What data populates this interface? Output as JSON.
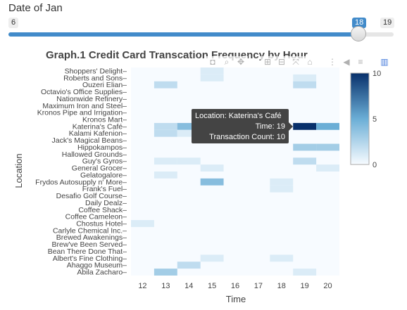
{
  "slider": {
    "title": "Date of Jan",
    "min_label": "6",
    "max_label": "19",
    "current_label": "18",
    "min": 6,
    "max": 19,
    "value": 18
  },
  "chart_title": "Graph.1 Credit Card Transcation Frequency by Hour",
  "modebar_icons": [
    "camera-icon",
    "zoom-icon",
    "pan-icon",
    "zoom-in-icon",
    "zoom-out-icon",
    "autoscale-icon",
    "home-icon",
    "spike-lines-icon",
    "hover-closest-icon",
    "hover-compare-icon",
    "plotly-logo-icon"
  ],
  "tooltip": {
    "line1": "Location: Katerina's Café",
    "line2": "Time: 19",
    "line3": "Transaction Count: 10"
  },
  "chart_data": {
    "type": "heatmap",
    "title": "Graph.1 Credit Card Transcation Frequency by Hour",
    "xlabel": "Time",
    "ylabel": "Location",
    "x": [
      12,
      13,
      14,
      15,
      16,
      17,
      18,
      19,
      20
    ],
    "locations": [
      "Shoppers' Delight",
      "Roberts and Sons",
      "Ouzeri Elian",
      "Octavio's Office Supplies",
      "Nationwide Refinery",
      "Maximum Iron and Steel",
      "Kronos Pipe and Irrigation",
      "Kronos Mart",
      "Katerina's Café",
      "Kalami Kafenion",
      "Jack's Magical Beans",
      "Hippokampos",
      "Hallowed Grounds",
      "Guy's Gyros",
      "General Grocer",
      "Gelatogalore",
      "Frydos Autosupply n' More",
      "Frank's Fuel",
      "Desafio Golf Course",
      "Daily Dealz",
      "Coffee Shack",
      "Coffee Cameleon",
      "Chostus Hotel",
      "Carlyle Chemical Inc.",
      "Brewed Awakenings",
      "Brew've Been Served",
      "Bean There Done That",
      "Albert's Fine Clothing",
      "Ahaggo Museum",
      "Abila Zacharo"
    ],
    "values": [
      [
        0,
        0,
        0,
        1,
        0,
        0,
        0,
        0,
        0
      ],
      [
        0,
        0,
        0,
        1,
        0,
        0,
        0,
        1,
        0
      ],
      [
        0,
        2,
        0,
        0,
        0,
        0,
        0,
        2,
        0
      ],
      [
        0,
        0,
        0,
        0,
        0,
        0,
        0,
        0,
        0
      ],
      [
        0,
        0,
        0,
        0,
        0,
        0,
        0,
        0,
        0
      ],
      [
        0,
        0,
        0,
        0,
        0,
        0,
        0,
        0,
        0
      ],
      [
        0,
        0,
        0,
        0,
        0,
        0,
        0,
        0,
        0
      ],
      [
        0,
        0,
        0,
        0,
        0,
        0,
        0,
        0,
        0
      ],
      [
        0,
        2,
        4,
        2,
        0,
        0,
        0,
        10,
        5
      ],
      [
        0,
        2,
        1,
        0,
        0,
        0,
        0,
        0,
        0
      ],
      [
        0,
        0,
        0,
        0,
        0,
        0,
        0,
        0,
        0
      ],
      [
        0,
        0,
        0,
        0,
        0,
        0,
        0,
        3,
        3
      ],
      [
        0,
        0,
        0,
        0,
        0,
        0,
        0,
        0,
        0
      ],
      [
        0,
        1,
        1,
        0,
        0,
        0,
        0,
        2,
        0
      ],
      [
        0,
        0,
        0,
        1,
        0,
        0,
        0,
        0,
        1
      ],
      [
        0,
        1,
        0,
        0,
        0,
        0,
        0,
        0,
        0
      ],
      [
        0,
        0,
        0,
        4,
        0,
        0,
        1,
        0,
        0
      ],
      [
        0,
        0,
        0,
        0,
        0,
        0,
        1,
        0,
        0
      ],
      [
        0,
        0,
        0,
        0,
        0,
        0,
        0,
        0,
        0
      ],
      [
        0,
        0,
        0,
        0,
        0,
        0,
        0,
        0,
        0
      ],
      [
        0,
        0,
        0,
        0,
        0,
        0,
        0,
        0,
        0
      ],
      [
        0,
        0,
        0,
        0,
        0,
        0,
        0,
        0,
        0
      ],
      [
        1,
        0,
        0,
        0,
        0,
        0,
        0,
        0,
        0
      ],
      [
        0,
        0,
        0,
        0,
        0,
        0,
        0,
        0,
        0
      ],
      [
        0,
        0,
        0,
        0,
        0,
        0,
        0,
        0,
        0
      ],
      [
        0,
        0,
        0,
        0,
        0,
        0,
        0,
        0,
        0
      ],
      [
        0,
        0,
        0,
        0,
        0,
        0,
        0,
        0,
        0
      ],
      [
        0,
        0,
        0,
        1,
        0,
        0,
        1,
        0,
        0
      ],
      [
        0,
        0,
        2,
        0,
        0,
        0,
        0,
        0,
        0
      ],
      [
        0,
        3,
        0,
        0,
        0,
        0,
        0,
        1,
        0
      ]
    ],
    "zlim": [
      0,
      10
    ],
    "colorbar_ticks": [
      0,
      5,
      10
    ],
    "colorscale": [
      "#f7fbff",
      "#08306b"
    ]
  }
}
